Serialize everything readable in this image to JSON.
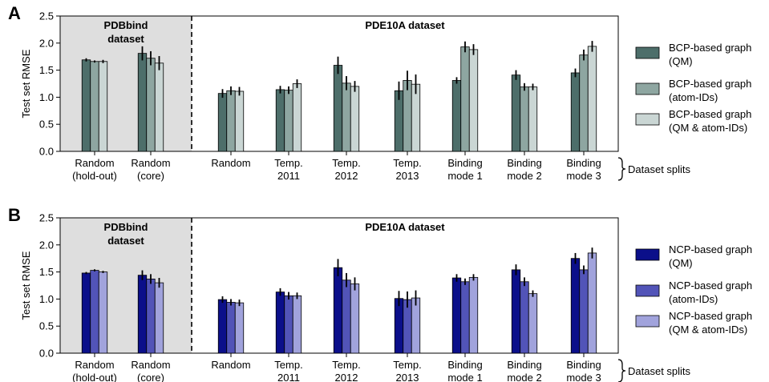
{
  "figure": {
    "x_tick_labels": [
      [
        "Random",
        "(hold-out)"
      ],
      [
        "Random",
        "(core)"
      ],
      [
        "Random"
      ],
      [
        "Temp.",
        "2011"
      ],
      [
        "Temp.",
        "2012"
      ],
      [
        "Temp.",
        "2013"
      ],
      [
        "Binding",
        "mode 1"
      ],
      [
        "Binding",
        "mode 2"
      ],
      [
        "Binding",
        "mode 3"
      ]
    ],
    "brace_label": "Dataset splits",
    "region_labels": {
      "pdbbind": [
        "PDBbind",
        "dataset"
      ],
      "pde10a": "PDE10A dataset"
    }
  },
  "chart_data": [
    {
      "type": "bar",
      "panel_label": "A",
      "ylabel": "Test set RMSE",
      "ylim": [
        0,
        2.5
      ],
      "yticks": [
        "0.0",
        "0.5",
        "1.0",
        "1.5",
        "2.0",
        "2.5"
      ],
      "grid": false,
      "legend_position": "right",
      "categories": [
        "Random (hold-out)",
        "Random (core)",
        "Random",
        "Temp. 2011",
        "Temp. 2012",
        "Temp. 2013",
        "Binding mode 1",
        "Binding mode 2",
        "Binding mode 3"
      ],
      "series": [
        {
          "name": "BCP-based graph (QM)",
          "legend": [
            "BCP-based graph",
            "(QM)"
          ],
          "color": "#4d6e6a",
          "values": [
            1.69,
            1.81,
            1.07,
            1.14,
            1.59,
            1.12,
            1.31,
            1.41,
            1.45
          ],
          "errors": [
            0.03,
            0.13,
            0.08,
            0.07,
            0.16,
            0.17,
            0.06,
            0.09,
            0.08
          ]
        },
        {
          "name": "BCP-based graph (atom-IDs)",
          "legend": [
            "BCP-based graph",
            "(atom-IDs)"
          ],
          "color": "#8ea6a1",
          "values": [
            1.66,
            1.72,
            1.12,
            1.13,
            1.26,
            1.31,
            1.93,
            1.19,
            1.78
          ],
          "errors": [
            0.02,
            0.13,
            0.08,
            0.07,
            0.13,
            0.18,
            0.1,
            0.07,
            0.1
          ]
        },
        {
          "name": "BCP-based graph (QM & atom-IDs)",
          "legend": [
            "BCP-based graph",
            "(QM & atom-IDs)"
          ],
          "color": "#cad6d4",
          "values": [
            1.66,
            1.63,
            1.11,
            1.25,
            1.2,
            1.24,
            1.88,
            1.19,
            1.94
          ],
          "errors": [
            0.03,
            0.13,
            0.08,
            0.08,
            0.1,
            0.18,
            0.1,
            0.06,
            0.1
          ]
        }
      ]
    },
    {
      "type": "bar",
      "panel_label": "B",
      "ylabel": "Test set RMSE",
      "ylim": [
        0,
        2.5
      ],
      "yticks": [
        "0.0",
        "0.5",
        "1.0",
        "1.5",
        "2.0",
        "2.5"
      ],
      "grid": false,
      "legend_position": "right",
      "categories": [
        "Random (hold-out)",
        "Random (core)",
        "Random",
        "Temp. 2011",
        "Temp. 2012",
        "Temp. 2013",
        "Binding mode 1",
        "Binding mode 2",
        "Binding mode 3"
      ],
      "series": [
        {
          "name": "NCP-based graph (QM)",
          "legend": [
            "NCP-based graph",
            "(QM)"
          ],
          "color": "#0b0f8a",
          "values": [
            1.48,
            1.44,
            0.99,
            1.13,
            1.58,
            1.01,
            1.39,
            1.54,
            1.75
          ],
          "errors": [
            0.02,
            0.09,
            0.06,
            0.07,
            0.16,
            0.14,
            0.07,
            0.1,
            0.1
          ]
        },
        {
          "name": "NCP-based graph (atom-IDs)",
          "legend": [
            "NCP-based graph",
            "(atom-IDs)"
          ],
          "color": "#5254b8",
          "values": [
            1.53,
            1.37,
            0.94,
            1.06,
            1.35,
            0.99,
            1.32,
            1.32,
            1.54
          ],
          "errors": [
            0.02,
            0.09,
            0.06,
            0.07,
            0.13,
            0.15,
            0.06,
            0.08,
            0.08
          ]
        },
        {
          "name": "NCP-based graph (QM & atom-IDs)",
          "legend": [
            "NCP-based graph",
            "(QM & atom-IDs)"
          ],
          "color": "#a1a3dc",
          "values": [
            1.5,
            1.3,
            0.93,
            1.06,
            1.28,
            1.02,
            1.4,
            1.1,
            1.85
          ],
          "errors": [
            0.02,
            0.09,
            0.06,
            0.06,
            0.12,
            0.14,
            0.06,
            0.06,
            0.1
          ]
        }
      ]
    }
  ]
}
